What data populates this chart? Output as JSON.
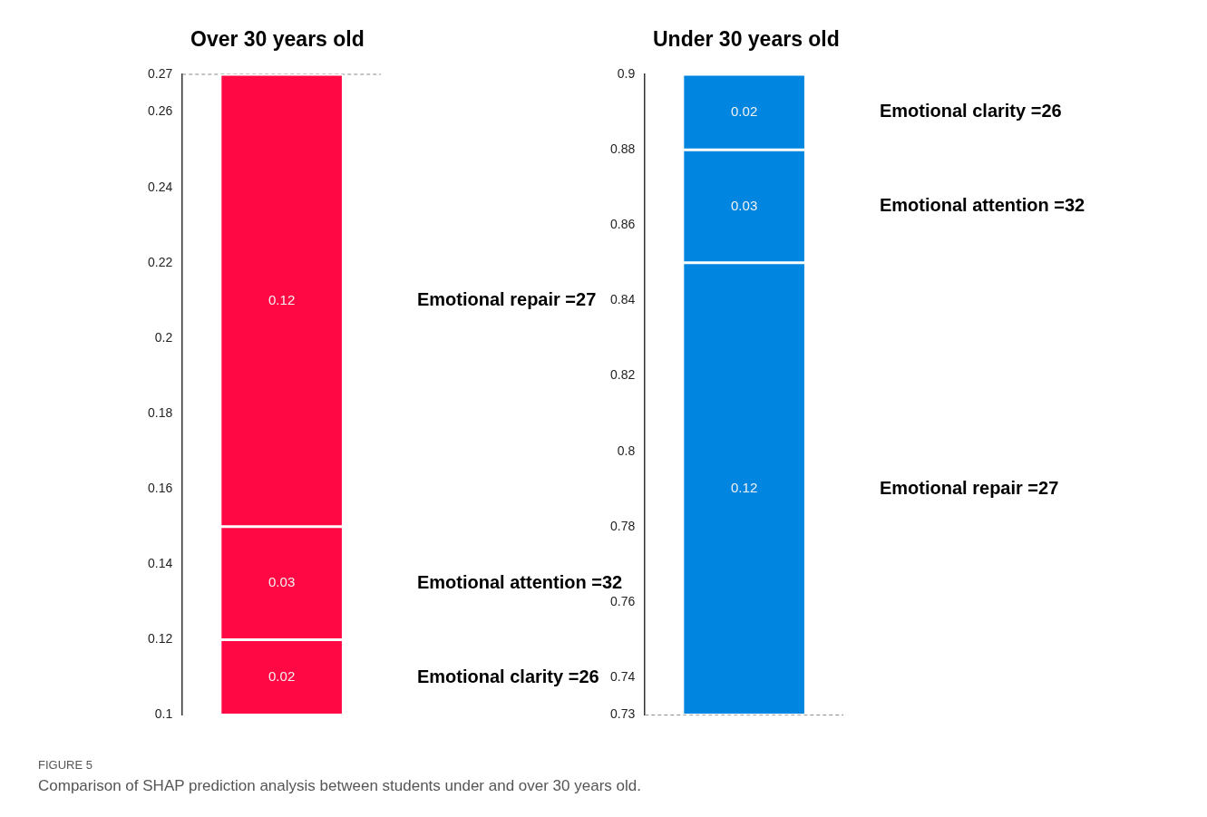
{
  "chart_data": [
    {
      "type": "bar",
      "title": "Over 30 years old",
      "categories": [
        null
      ],
      "series": [
        {
          "name": "Emotional clarity =26",
          "color": "#ff0844",
          "base": [
            0.1
          ],
          "values": [
            0.02
          ]
        },
        {
          "name": "Emotional attention =32",
          "color": "#ff0844",
          "base": [
            0.12
          ],
          "values": [
            0.03
          ]
        },
        {
          "name": "Emotional repair =27",
          "color": "#ff0844",
          "base": [
            0.15
          ],
          "values": [
            0.12
          ]
        }
      ],
      "ylim": [
        0.1,
        0.27
      ],
      "yticks": [
        0.1,
        0.12,
        0.14,
        0.16,
        0.18,
        0.2,
        0.22,
        0.24,
        0.26,
        0.27
      ],
      "ref_lines": [
        {
          "axis": "y",
          "value": 0.27,
          "line_style": "dashed"
        }
      ],
      "data_labels": true,
      "grid": false,
      "legend": false,
      "tick_labels": "y",
      "annotations": [
        "FIGURE 5",
        "Comparison of SHAP prediction analysis between students under and over 30 years old."
      ]
    },
    {
      "type": "bar",
      "title": "Under 30 years old",
      "categories": [
        null
      ],
      "series": [
        {
          "name": "Emotional clarity =26",
          "color": "#0086e0",
          "base": [
            0.88
          ],
          "values": [
            0.02
          ]
        },
        {
          "name": "Emotional attention =32",
          "color": "#0086e0",
          "base": [
            0.85
          ],
          "values": [
            0.03
          ]
        },
        {
          "name": "Emotional repair =27",
          "color": "#0086e0",
          "base": [
            0.73
          ],
          "values": [
            0.12
          ]
        }
      ],
      "ylim": [
        0.73,
        0.9
      ],
      "yticks": [
        0.73,
        0.74,
        0.76,
        0.78,
        0.8,
        0.82,
        0.84,
        0.86,
        0.88,
        0.9
      ],
      "ref_lines": [
        {
          "axis": "y",
          "value": 0.73,
          "line_style": "dashed"
        }
      ],
      "data_labels": true,
      "grid": false,
      "legend": false,
      "tick_labels": "y"
    }
  ]
}
